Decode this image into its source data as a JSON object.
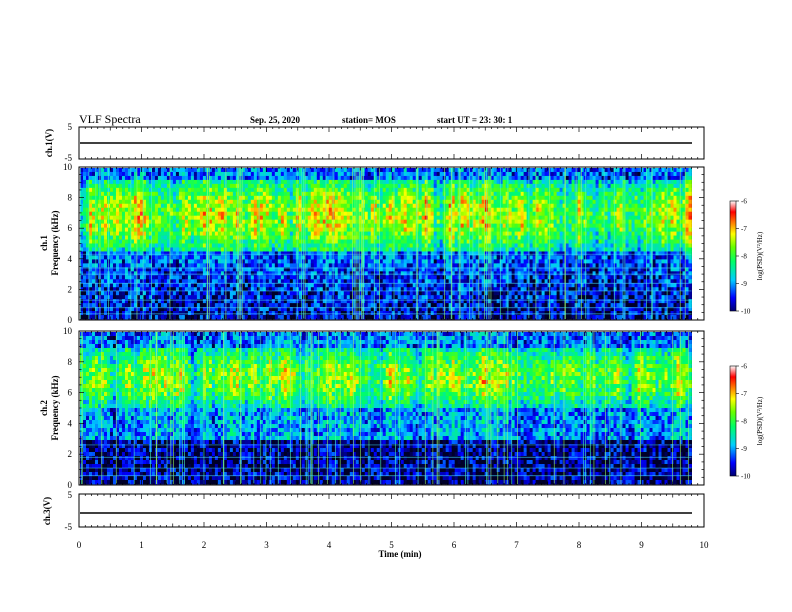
{
  "header": {
    "title": "VLF Spectra",
    "date": "Sep. 25, 2020",
    "station": "station= MOS",
    "start_ut": "start UT =   23: 30: 1"
  },
  "chart_data": [
    {
      "type": "line",
      "name": "ch1-waveform",
      "ylabel": "ch.1(V)",
      "ylim": [
        -5,
        5
      ],
      "yticks": [
        "5",
        "-5"
      ],
      "x": [
        0,
        10
      ],
      "values": [
        -0.2,
        -0.2
      ],
      "xlim": [
        0,
        10
      ]
    },
    {
      "type": "heatmap",
      "name": "ch1-spectrogram",
      "ylabel": "ch.1\nFrequency (kHz)",
      "ylim": [
        0,
        10
      ],
      "yticks": [
        "0",
        "2",
        "4",
        "6",
        "8",
        "10"
      ],
      "xlim": [
        0,
        10
      ],
      "data_end_min": 9.8,
      "colorbar": {
        "label": "log(PSD)(V²/Hz)",
        "range": [
          -10,
          -6
        ],
        "ticks": [
          "-6",
          "-7",
          "-8",
          "-9",
          "-10"
        ]
      }
    },
    {
      "type": "heatmap",
      "name": "ch2-spectrogram",
      "ylabel": "ch.2\nFrequency (kHz)",
      "ylim": [
        0,
        10
      ],
      "yticks": [
        "0",
        "2",
        "4",
        "6",
        "8",
        "10"
      ],
      "xlim": [
        0,
        10
      ],
      "data_end_min": 9.8,
      "colorbar": {
        "label": "log(PSD)(V²/Hz)",
        "range": [
          -10,
          -6
        ],
        "ticks": [
          "-6",
          "-7",
          "-8",
          "-9",
          "-10"
        ]
      }
    },
    {
      "type": "line",
      "name": "ch3-waveform",
      "ylabel": "ch.3(V)",
      "ylim": [
        -5,
        5
      ],
      "yticks": [
        "5",
        "-5"
      ],
      "x": [
        0,
        9.8
      ],
      "values": [
        -1.1,
        -1.1
      ],
      "xlim": [
        0,
        10
      ],
      "xlabel": "Time (min)",
      "xticks": [
        "0",
        "1",
        "2",
        "3",
        "4",
        "5",
        "6",
        "7",
        "8",
        "9",
        "10"
      ]
    }
  ]
}
